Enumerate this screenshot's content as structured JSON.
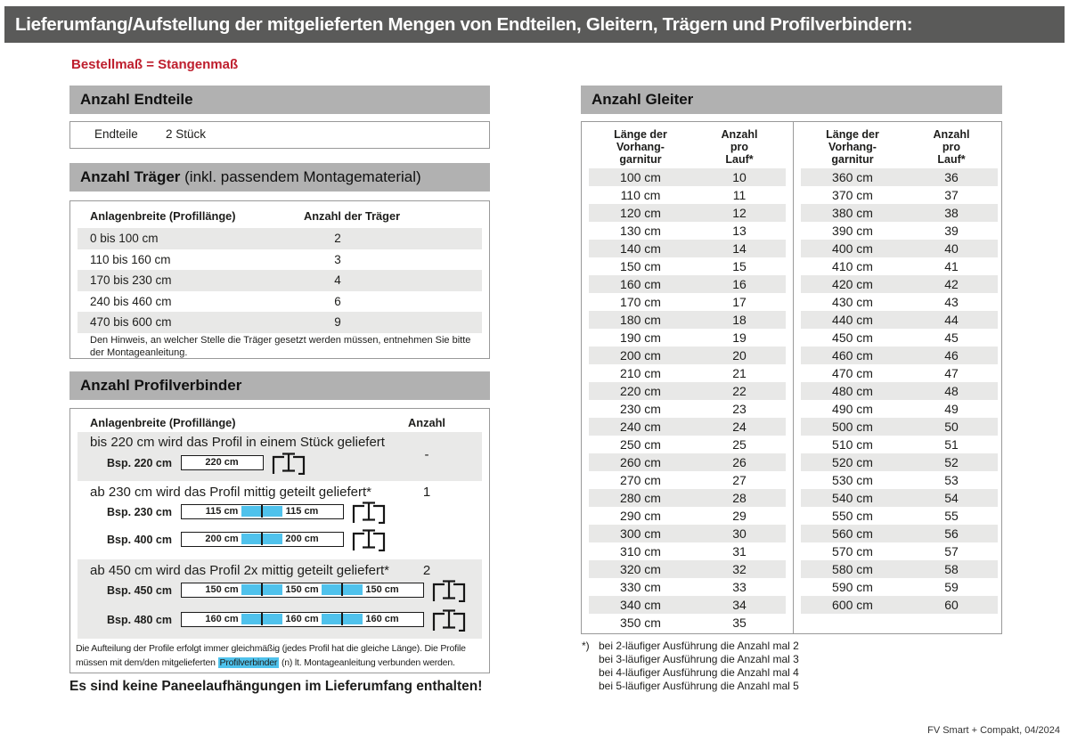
{
  "page": {
    "title": "Lieferumfang/Aufstellung der mitgelieferten Mengen von Endteilen, Gleitern, Trägern und Profilverbindern:",
    "subtitle": "Bestellmaß = Stangenmaß",
    "bottom_note": "Es sind keine Paneelaufhängungen im Lieferumfang enthalten!",
    "footer": "FV Smart + Compakt, 04/2024"
  },
  "colors": {
    "title_bar_bg": "#5a5a59",
    "section_header_bg": "#b1b1b1",
    "row_stripe_bg": "#e8e8e7",
    "accent_red": "#be1e2d",
    "connector_cyan": "#4fc2ec"
  },
  "endteile": {
    "section_title": "Anzahl Endteile",
    "label": "Endteile",
    "value": "2 Stück"
  },
  "traeger": {
    "section_title": "Anzahl Träger",
    "section_title_suffix": " (inkl. passendem Montagematerial)",
    "col1": "Anlagenbreite (Profillänge)",
    "col2": "Anzahl der Träger",
    "rows": [
      [
        "0 bis 100 cm",
        "2"
      ],
      [
        "110 bis 160 cm",
        "3"
      ],
      [
        "170 bis 230 cm",
        "4"
      ],
      [
        "240 bis 460 cm",
        "6"
      ],
      [
        "470 bis 600 cm",
        "9"
      ]
    ],
    "note": "Den Hinweis, an welcher Stelle die Träger gesetzt werden müssen, entnehmen Sie bitte\nder Montageanleitung."
  },
  "profilverbinder": {
    "section_title": "Anzahl Profilverbinder",
    "col1": "Anlagenbreite (Profillänge)",
    "col2": "Anzahl",
    "rows": [
      {
        "text": "bis 220 cm wird das Profil in einem Stück geliefert",
        "anzahl": "-",
        "examples": [
          {
            "label": "Bsp. 220 cm",
            "segments": [
              "220 cm"
            ]
          }
        ]
      },
      {
        "text": "ab 230 cm wird das Profil mittig geteilt geliefert*",
        "anzahl": "1",
        "examples": [
          {
            "label": "Bsp. 230 cm",
            "segments": [
              "115 cm",
              "115 cm"
            ]
          },
          {
            "label": "Bsp. 400 cm",
            "segments": [
              "200 cm",
              "200 cm"
            ]
          }
        ]
      },
      {
        "text": "ab 450 cm wird das Profil 2x mittig geteilt geliefert*",
        "anzahl": "2",
        "examples": [
          {
            "label": "Bsp. 450 cm",
            "segments": [
              "150 cm",
              "150 cm",
              "150 cm"
            ]
          },
          {
            "label": "Bsp. 480 cm",
            "segments": [
              "160 cm",
              "160 cm",
              "160 cm"
            ]
          }
        ]
      }
    ],
    "note_line1": "Die Aufteilung der Profile erfolgt immer gleichmäßig (jedes Profil hat die gleiche Länge). Die Profile",
    "note_line2_pre": "müssen mit dem/den mitgelieferten ",
    "note_highlight": "Profilverbinder",
    "note_line2_post": " (n) lt. Montageanleitung verbunden werden."
  },
  "gleiter": {
    "section_title": "Anzahl Gleiter",
    "col1": "Länge der\nVorhang-\ngarnitur",
    "col2": "Anzahl\npro\nLauf*",
    "left_rows": [
      [
        "100 cm",
        "10"
      ],
      [
        "110 cm",
        "11"
      ],
      [
        "120 cm",
        "12"
      ],
      [
        "130 cm",
        "13"
      ],
      [
        "140 cm",
        "14"
      ],
      [
        "150 cm",
        "15"
      ],
      [
        "160 cm",
        "16"
      ],
      [
        "170 cm",
        "17"
      ],
      [
        "180 cm",
        "18"
      ],
      [
        "190 cm",
        "19"
      ],
      [
        "200 cm",
        "20"
      ],
      [
        "210 cm",
        "21"
      ],
      [
        "220 cm",
        "22"
      ],
      [
        "230 cm",
        "23"
      ],
      [
        "240 cm",
        "24"
      ],
      [
        "250 cm",
        "25"
      ],
      [
        "260 cm",
        "26"
      ],
      [
        "270 cm",
        "27"
      ],
      [
        "280 cm",
        "28"
      ],
      [
        "290 cm",
        "29"
      ],
      [
        "300 cm",
        "30"
      ],
      [
        "310 cm",
        "31"
      ],
      [
        "320 cm",
        "32"
      ],
      [
        "330 cm",
        "33"
      ],
      [
        "340 cm",
        "34"
      ],
      [
        "350 cm",
        "35"
      ]
    ],
    "right_rows": [
      [
        "360 cm",
        "36"
      ],
      [
        "370 cm",
        "37"
      ],
      [
        "380 cm",
        "38"
      ],
      [
        "390 cm",
        "39"
      ],
      [
        "400 cm",
        "40"
      ],
      [
        "410 cm",
        "41"
      ],
      [
        "420 cm",
        "42"
      ],
      [
        "430 cm",
        "43"
      ],
      [
        "440 cm",
        "44"
      ],
      [
        "450 cm",
        "45"
      ],
      [
        "460 cm",
        "46"
      ],
      [
        "470 cm",
        "47"
      ],
      [
        "480 cm",
        "48"
      ],
      [
        "490 cm",
        "49"
      ],
      [
        "500 cm",
        "50"
      ],
      [
        "510 cm",
        "51"
      ],
      [
        "520 cm",
        "52"
      ],
      [
        "530 cm",
        "53"
      ],
      [
        "540 cm",
        "54"
      ],
      [
        "550 cm",
        "55"
      ],
      [
        "560 cm",
        "56"
      ],
      [
        "570 cm",
        "57"
      ],
      [
        "580 cm",
        "58"
      ],
      [
        "590 cm",
        "59"
      ],
      [
        "600 cm",
        "60"
      ]
    ],
    "footnote_marker": "*)",
    "footnotes": [
      "bei 2-läufiger Ausführung die Anzahl mal 2",
      "bei 3-läufiger Ausführung die Anzahl mal 3",
      "bei 4-läufiger Ausführung die Anzahl mal 4",
      "bei 5-läufiger Ausführung die Anzahl mal 5"
    ]
  }
}
